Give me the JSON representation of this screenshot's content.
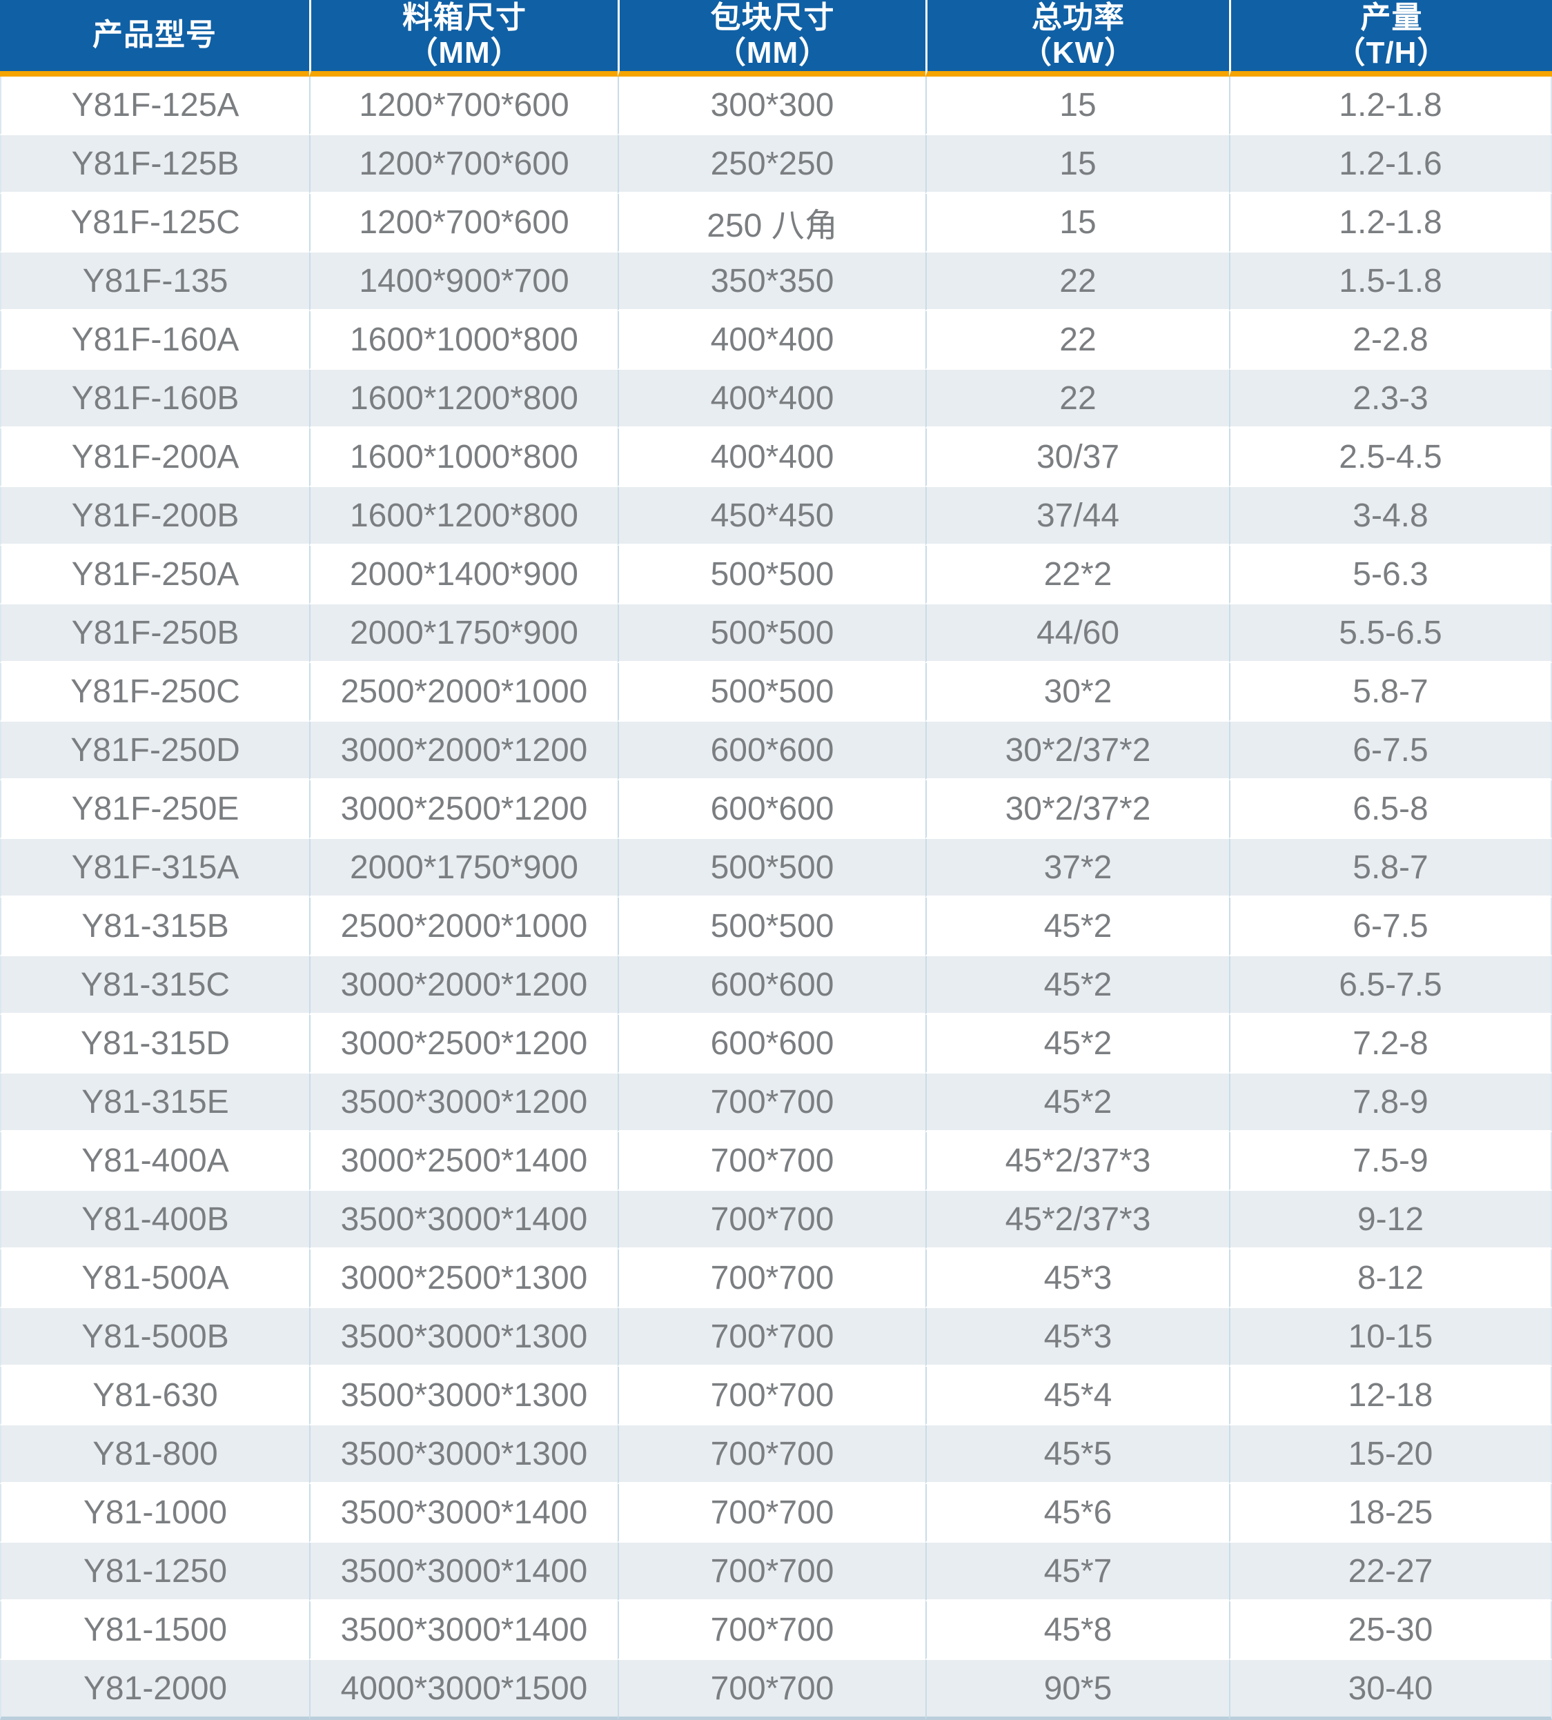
{
  "colors": {
    "header_bg": "#1060A5",
    "header_text": "#FFFFFF",
    "accent_orange": "#F5A400",
    "row_bg": "#FFFFFF",
    "row_alt_bg": "#E8EDF1",
    "body_text": "#7B7E81",
    "grid_line": "#C9DCE8",
    "bottom_border": "#BACFDB"
  },
  "chart_data": {
    "type": "table",
    "title": "",
    "columns": [
      {
        "label": "产品型号",
        "unit": ""
      },
      {
        "label": "料箱尺寸",
        "unit": "（MM）"
      },
      {
        "label": "包块尺寸",
        "unit": "（MM）"
      },
      {
        "label": "总功率",
        "unit": "（KW）"
      },
      {
        "label": "产量",
        "unit": "（T/H）"
      }
    ],
    "rows": [
      [
        "Y81F-125A",
        "1200*700*600",
        "300*300",
        "15",
        "1.2-1.8"
      ],
      [
        "Y81F-125B",
        "1200*700*600",
        "250*250",
        "15",
        "1.2-1.6"
      ],
      [
        "Y81F-125C",
        "1200*700*600",
        "250 八角",
        "15",
        "1.2-1.8"
      ],
      [
        "Y81F-135",
        "1400*900*700",
        "350*350",
        "22",
        "1.5-1.8"
      ],
      [
        "Y81F-160A",
        "1600*1000*800",
        "400*400",
        "22",
        "2-2.8"
      ],
      [
        "Y81F-160B",
        "1600*1200*800",
        "400*400",
        "22",
        "2.3-3"
      ],
      [
        "Y81F-200A",
        "1600*1000*800",
        "400*400",
        "30/37",
        "2.5-4.5"
      ],
      [
        "Y81F-200B",
        "1600*1200*800",
        "450*450",
        "37/44",
        "3-4.8"
      ],
      [
        "Y81F-250A",
        "2000*1400*900",
        "500*500",
        "22*2",
        "5-6.3"
      ],
      [
        "Y81F-250B",
        "2000*1750*900",
        "500*500",
        "44/60",
        "5.5-6.5"
      ],
      [
        "Y81F-250C",
        "2500*2000*1000",
        "500*500",
        "30*2",
        "5.8-7"
      ],
      [
        "Y81F-250D",
        "3000*2000*1200",
        "600*600",
        "30*2/37*2",
        "6-7.5"
      ],
      [
        "Y81F-250E",
        "3000*2500*1200",
        "600*600",
        "30*2/37*2",
        "6.5-8"
      ],
      [
        "Y81F-315A",
        "2000*1750*900",
        "500*500",
        "37*2",
        "5.8-7"
      ],
      [
        "Y81-315B",
        "2500*2000*1000",
        "500*500",
        "45*2",
        "6-7.5"
      ],
      [
        "Y81-315C",
        "3000*2000*1200",
        "600*600",
        "45*2",
        "6.5-7.5"
      ],
      [
        "Y81-315D",
        "3000*2500*1200",
        "600*600",
        "45*2",
        "7.2-8"
      ],
      [
        "Y81-315E",
        "3500*3000*1200",
        "700*700",
        "45*2",
        "7.8-9"
      ],
      [
        "Y81-400A",
        "3000*2500*1400",
        "700*700",
        "45*2/37*3",
        "7.5-9"
      ],
      [
        "Y81-400B",
        "3500*3000*1400",
        "700*700",
        "45*2/37*3",
        "9-12"
      ],
      [
        "Y81-500A",
        "3000*2500*1300",
        "700*700",
        "45*3",
        "8-12"
      ],
      [
        "Y81-500B",
        "3500*3000*1300",
        "700*700",
        "45*3",
        "10-15"
      ],
      [
        "Y81-630",
        "3500*3000*1300",
        "700*700",
        "45*4",
        "12-18"
      ],
      [
        "Y81-800",
        "3500*3000*1300",
        "700*700",
        "45*5",
        "15-20"
      ],
      [
        "Y81-1000",
        "3500*3000*1400",
        "700*700",
        "45*6",
        "18-25"
      ],
      [
        "Y81-1250",
        "3500*3000*1400",
        "700*700",
        "45*7",
        "22-27"
      ],
      [
        "Y81-1500",
        "3500*3000*1400",
        "700*700",
        "45*8",
        "25-30"
      ],
      [
        "Y81-2000",
        "4000*3000*1500",
        "700*700",
        "90*5",
        "30-40"
      ]
    ]
  }
}
